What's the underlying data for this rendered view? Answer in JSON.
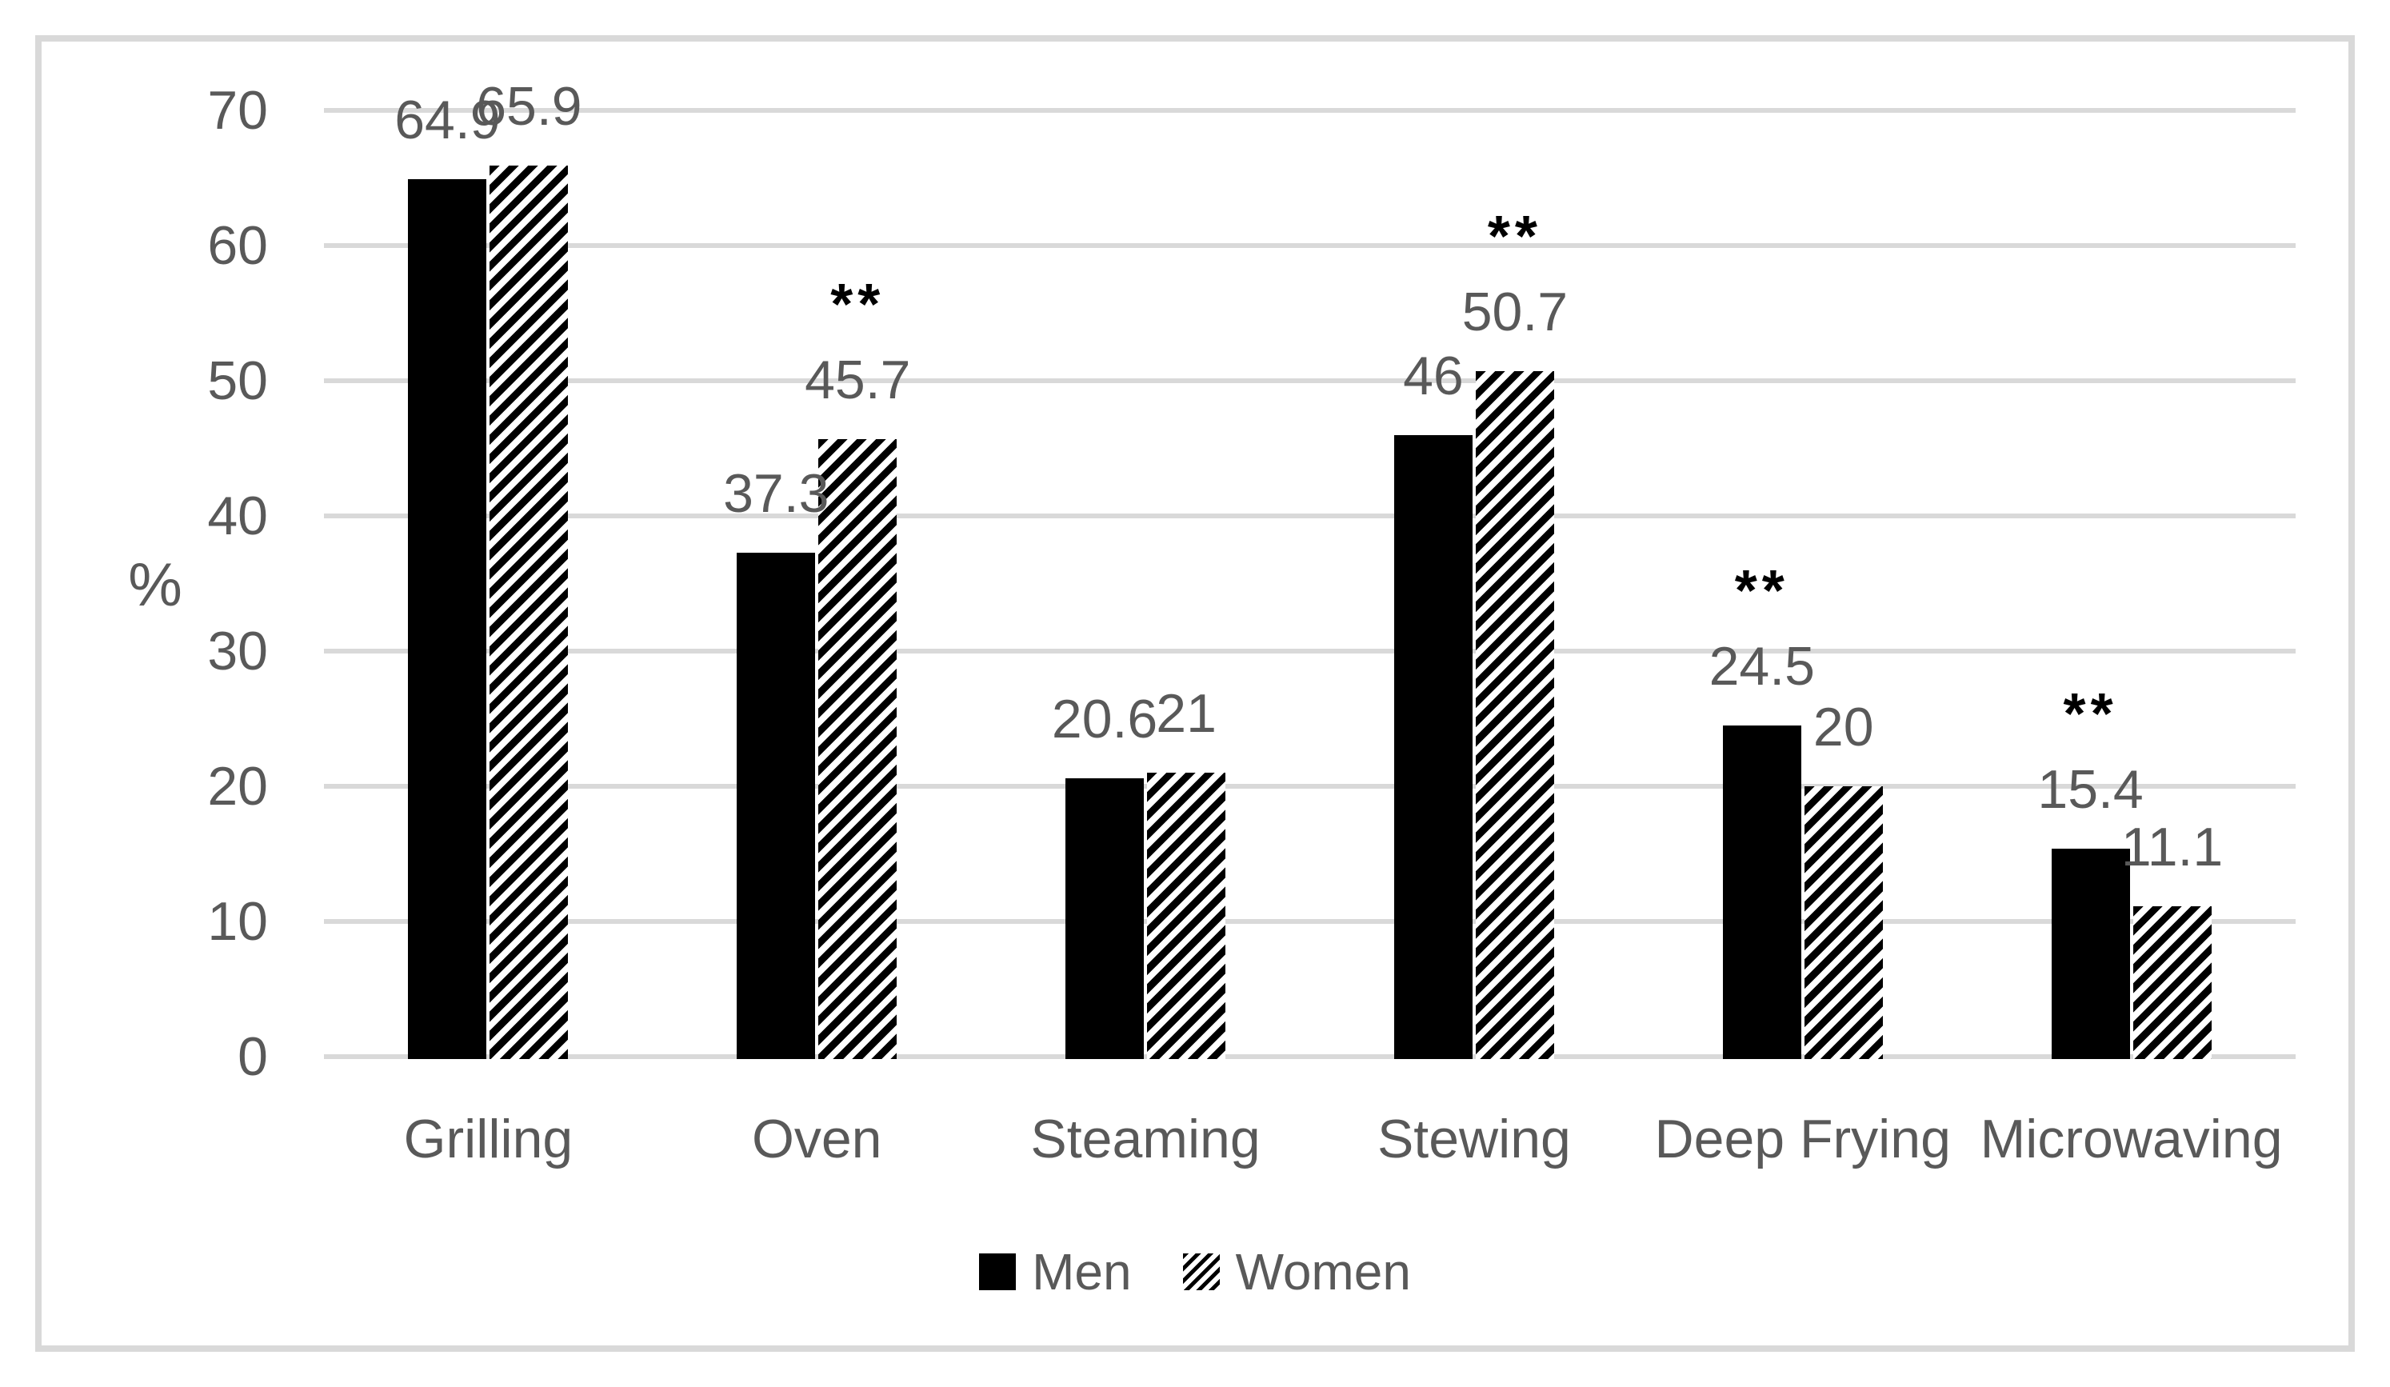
{
  "chart_data": {
    "type": "bar",
    "title": "",
    "xlabel": "",
    "ylabel": "%",
    "ylim": [
      0,
      70
    ],
    "ytick_step": 10,
    "yticks": [
      "0",
      "10",
      "20",
      "30",
      "40",
      "50",
      "60",
      "70"
    ],
    "grid": "horizontal-on",
    "legend_position": "bottom-center",
    "categories": [
      "Grilling",
      "Oven",
      "Steaming",
      "Stewing",
      "Deep Frying",
      "Microwaving"
    ],
    "series": [
      {
        "name": "Men",
        "style": "solid-black",
        "values": [
          64.9,
          37.3,
          20.6,
          46,
          24.5,
          15.4
        ],
        "labels": [
          "64.9",
          "37.3",
          "20.6",
          "46",
          "24.5",
          "15.4"
        ]
      },
      {
        "name": "Women",
        "style": "diagonal-hatch",
        "values": [
          65.9,
          45.7,
          21,
          50.7,
          20,
          11.1
        ],
        "labels": [
          "65.9",
          "45.7",
          "21",
          "50.7",
          "20",
          "11.1"
        ]
      }
    ],
    "significance_markers": [
      {
        "category": "Oven",
        "text": "**",
        "over_series": "Women"
      },
      {
        "category": "Stewing",
        "text": "**",
        "over_series": "Women"
      },
      {
        "category": "Deep Frying",
        "text": "**",
        "over_series": "Men"
      },
      {
        "category": "Microwaving",
        "text": "**",
        "over_series": "Men"
      }
    ],
    "colors": {
      "bar_fill": "#000000",
      "text": "#595959",
      "significance": "#000000",
      "gridline": "#d9d9d9",
      "frame_border": "#d9d9d9",
      "background": "#ffffff"
    }
  }
}
